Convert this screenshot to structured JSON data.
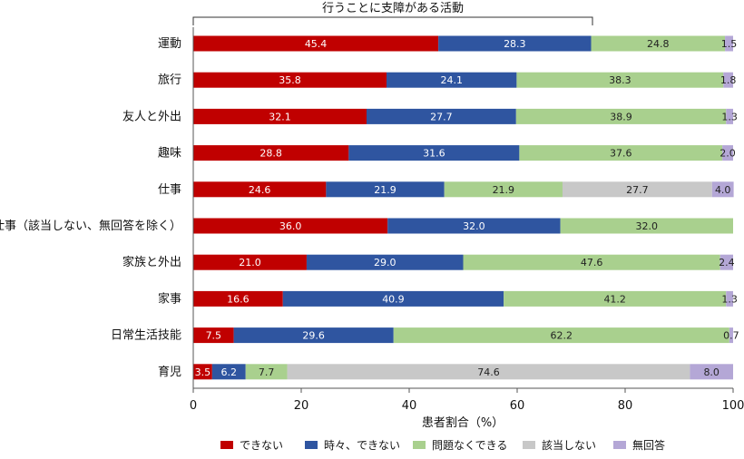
{
  "chart_data": {
    "type": "bar",
    "orientation": "horizontal",
    "stacked": true,
    "title": "",
    "bracket_label": "行うことに支障がある活動",
    "xlabel": "患者割合（%）",
    "ylabel": "",
    "xlim": [
      0,
      100
    ],
    "xticks": [
      "0",
      "20",
      "40",
      "60",
      "80",
      "100"
    ],
    "grid": false,
    "legend_position": "bottom",
    "categories": [
      "運動",
      "旅行",
      "友人と外出",
      "趣味",
      "仕事",
      "仕事（該当しない、無回答を除く）",
      "家族と外出",
      "家事",
      "日常生活技能",
      "育児"
    ],
    "series": [
      {
        "name": "できない",
        "color": "#c00000",
        "text_color": "#ffffff",
        "values": [
          45.4,
          35.8,
          32.1,
          28.8,
          24.6,
          36.0,
          21.0,
          16.6,
          7.5,
          3.5
        ],
        "labels": [
          "45.4",
          "35.8",
          "32.1",
          "28.8",
          "24.6",
          "36.0",
          "21.0",
          "16.6",
          "7.5",
          "3.5"
        ]
      },
      {
        "name": "時々、できない",
        "color": "#2f55a0",
        "text_color": "#ffffff",
        "values": [
          28.3,
          24.1,
          27.7,
          31.6,
          21.9,
          32.0,
          29.0,
          40.9,
          29.6,
          6.2
        ],
        "labels": [
          "28.3",
          "24.1",
          "27.7",
          "31.6",
          "21.9",
          "32.0",
          "29.0",
          "40.9",
          "29.6",
          "6.2"
        ]
      },
      {
        "name": "問題なくできる",
        "color": "#a9d08e",
        "text_color": "#222222",
        "values": [
          24.8,
          38.3,
          38.9,
          37.6,
          21.9,
          32.0,
          47.6,
          41.2,
          62.2,
          7.7
        ],
        "labels": [
          "24.8",
          "38.3",
          "38.9",
          "37.6",
          "21.9",
          "32.0",
          "47.6",
          "41.2",
          "62.2",
          "7.7"
        ]
      },
      {
        "name": "該当しない",
        "color": "#c8c8c8",
        "text_color": "#222222",
        "values": [
          0,
          0,
          0,
          0,
          27.7,
          0,
          0,
          0,
          0,
          74.6
        ],
        "labels": [
          "",
          "",
          "",
          "",
          "27.7",
          "",
          "",
          "",
          "",
          "74.6"
        ]
      },
      {
        "name": "無回答",
        "color": "#b4a7d6",
        "text_color": "#222222",
        "values": [
          1.5,
          1.8,
          1.3,
          2.0,
          4.0,
          0,
          2.4,
          1.3,
          0.7,
          8.0
        ],
        "labels": [
          "1.5",
          "1.8",
          "1.3",
          "2.0",
          "4.0",
          "",
          "2.4",
          "1.3",
          "0.7",
          "8.0"
        ]
      }
    ]
  }
}
